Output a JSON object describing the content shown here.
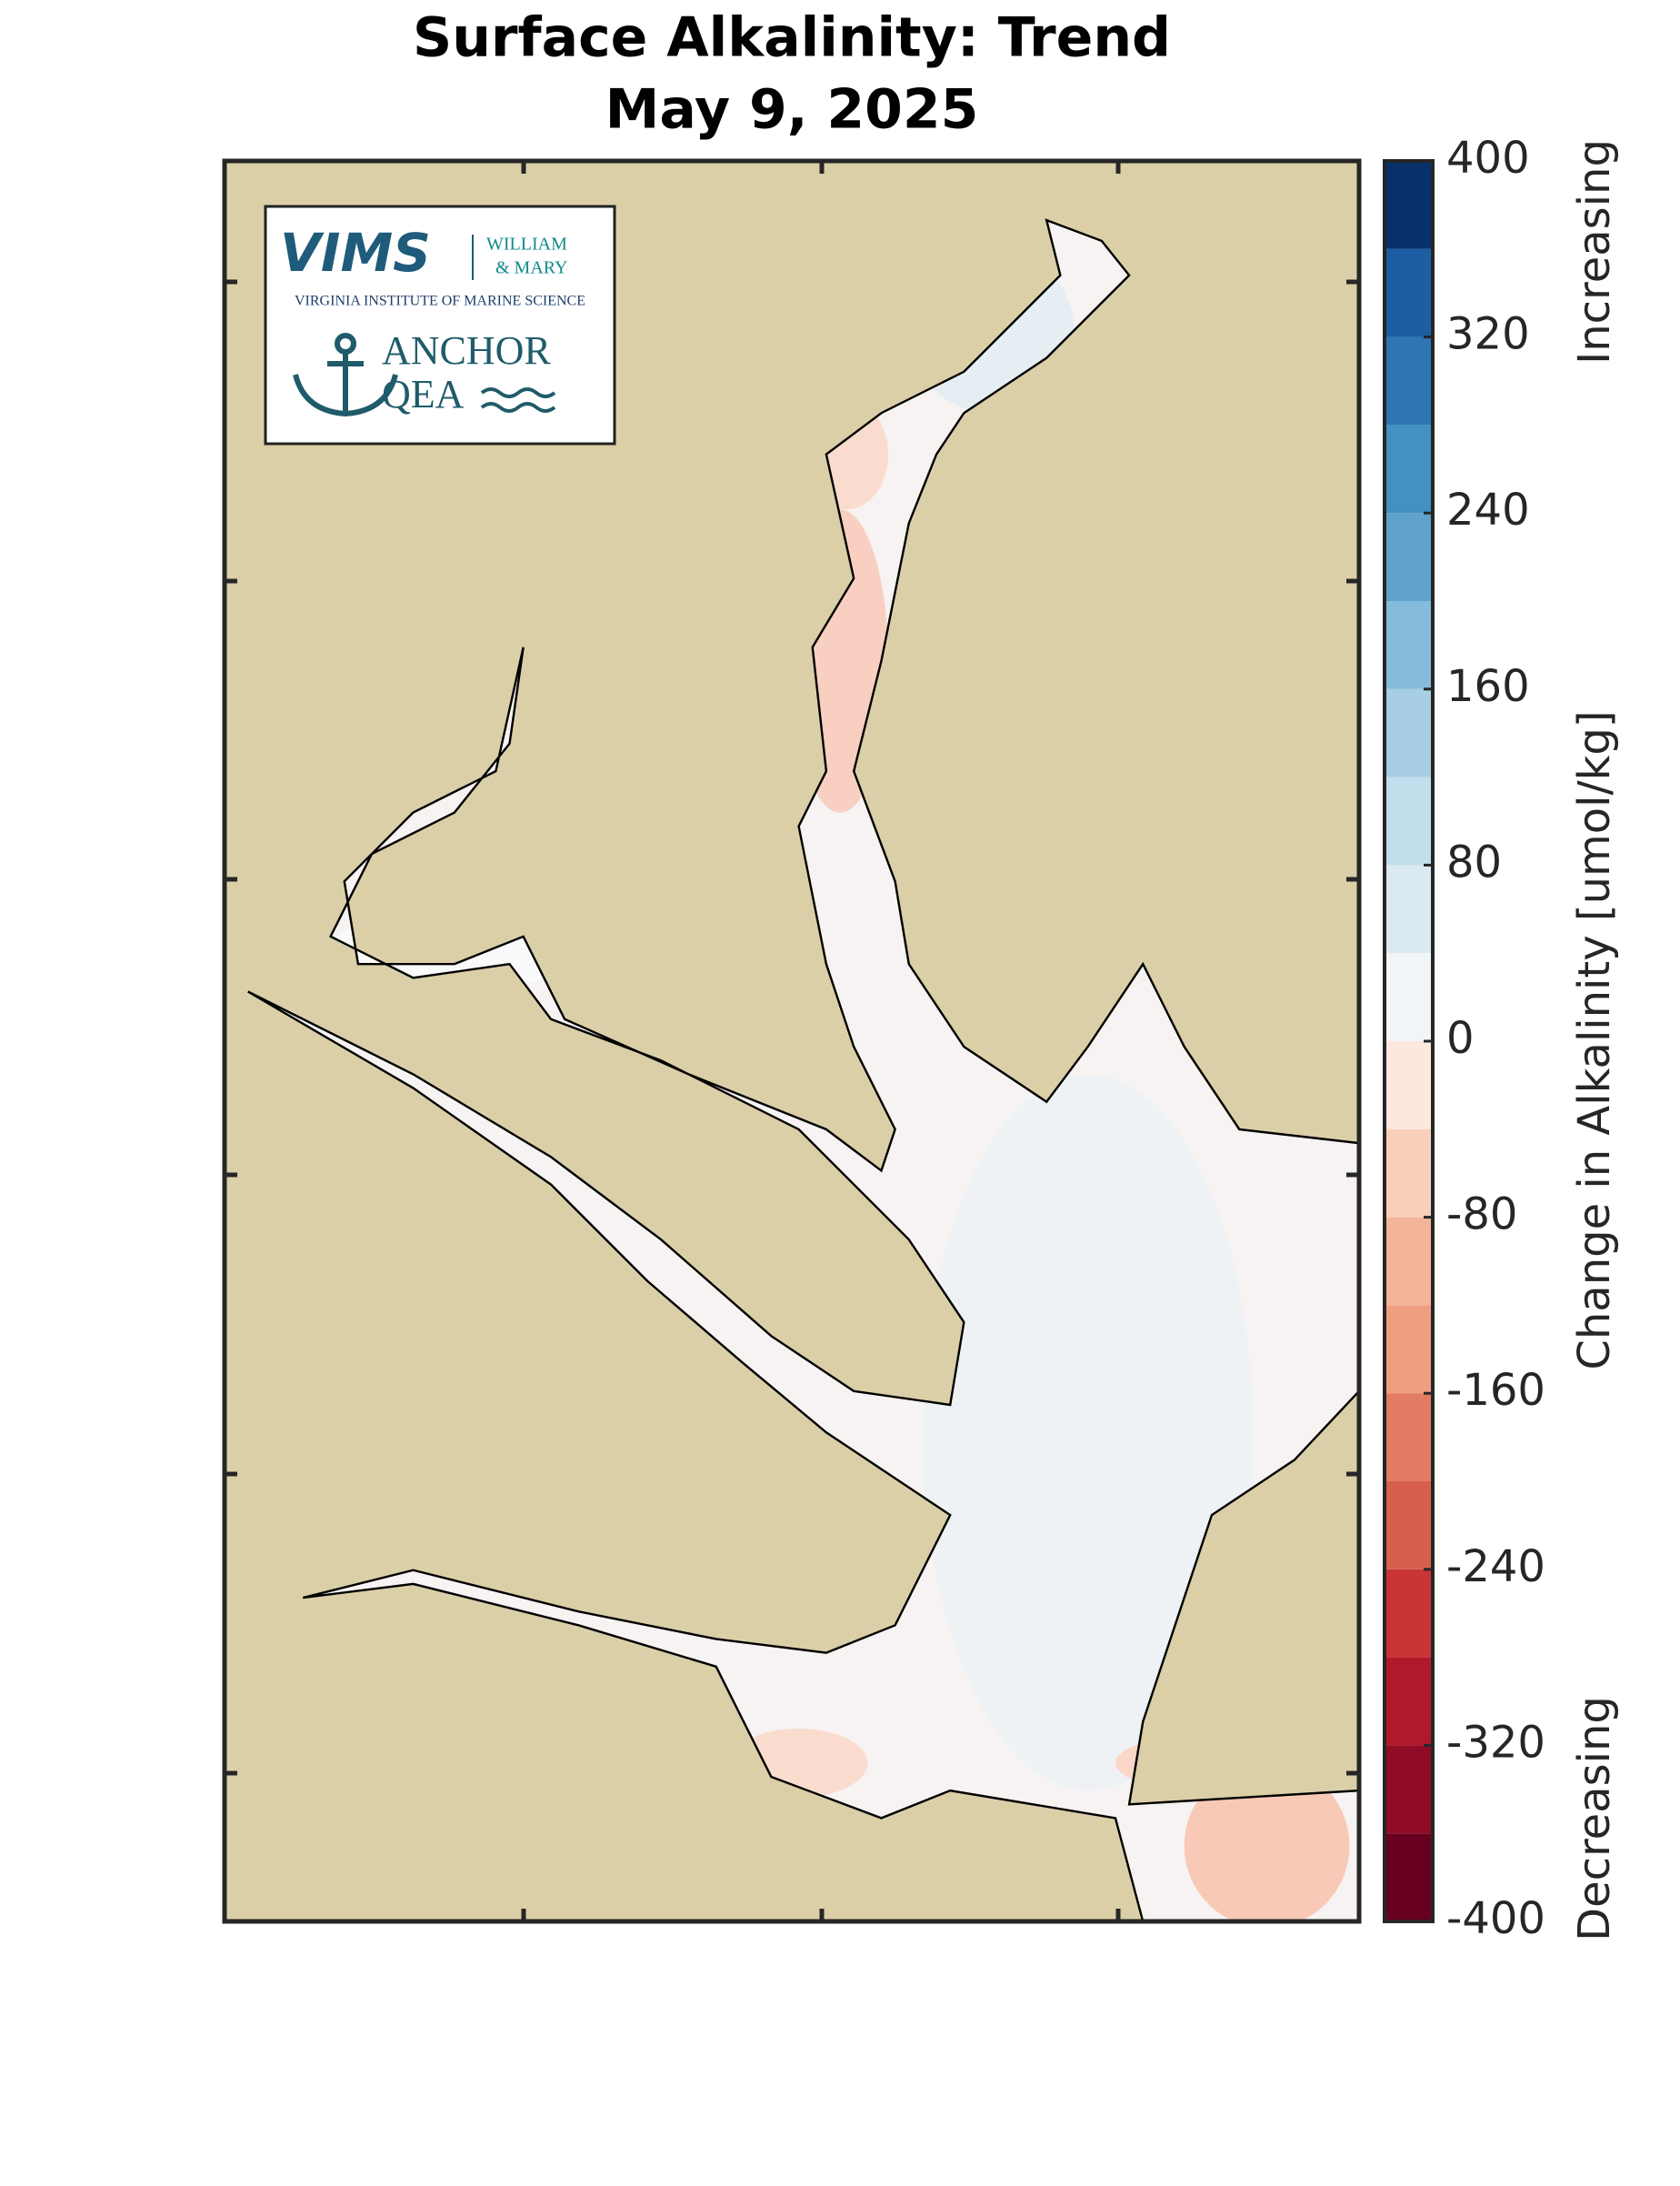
{
  "title": "Surface Alkalinity: Trend",
  "subtitle": "May 9, 2025",
  "logo": {
    "vims": "VIMS",
    "partner_line1": "WILLIAM",
    "partner_line2": "& MARY",
    "institute": "VIRGINIA INSTITUTE OF MARINE SCIENCE",
    "anchor_line1": "ANCHOR",
    "anchor_line2": "QEA"
  },
  "colorbar": {
    "label": "Change in Alkalinity [umol/kg]",
    "upper_label": "Increasing",
    "lower_label": "Decreasing",
    "lim": [
      -400,
      400
    ],
    "levels": [
      -400,
      -360,
      -320,
      -280,
      -240,
      -200,
      -160,
      -120,
      -80,
      -40,
      0,
      40,
      80,
      120,
      160,
      200,
      240,
      280,
      320,
      360,
      400
    ],
    "colors": [
      "#67001f",
      "#900c26",
      "#b2182b",
      "#c93537",
      "#d6604d",
      "#e27c63",
      "#f09e80",
      "#f5b59a",
      "#fbd0bb",
      "#fde8de",
      "#f2f5f7",
      "#dbe9f2",
      "#c2ddec",
      "#a7cee4",
      "#86bcdb",
      "#5fa2cc",
      "#4390c2",
      "#2d75b3",
      "#1b5ea3",
      "#08306b"
    ],
    "ticks": [
      -400,
      -320,
      -240,
      -160,
      -80,
      0,
      80,
      160,
      240,
      320,
      400
    ]
  }
}
